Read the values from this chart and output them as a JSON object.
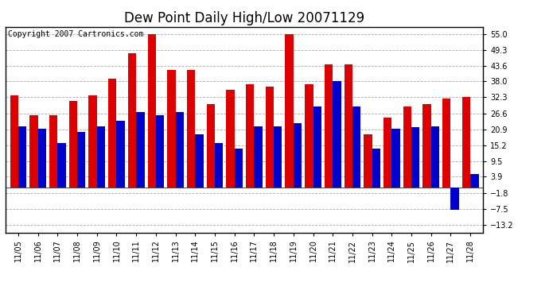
{
  "title": "Dew Point Daily High/Low 20071129",
  "copyright": "Copyright 2007 Cartronics.com",
  "dates": [
    "11/05",
    "11/06",
    "11/07",
    "11/08",
    "11/09",
    "11/10",
    "11/11",
    "11/12",
    "11/13",
    "11/14",
    "11/15",
    "11/16",
    "11/17",
    "11/18",
    "11/19",
    "11/20",
    "11/21",
    "11/22",
    "11/23",
    "11/24",
    "11/25",
    "11/26",
    "11/27",
    "11/28"
  ],
  "highs": [
    33.0,
    26.0,
    26.0,
    31.0,
    33.0,
    39.0,
    48.0,
    55.0,
    42.0,
    42.0,
    30.0,
    35.0,
    37.0,
    36.0,
    55.0,
    37.0,
    44.0,
    44.0,
    19.0,
    25.0,
    29.0,
    30.0,
    32.0,
    32.5
  ],
  "lows": [
    22.0,
    21.0,
    16.0,
    20.0,
    22.0,
    24.0,
    27.0,
    26.0,
    27.0,
    19.0,
    16.0,
    14.0,
    22.0,
    22.0,
    23.0,
    29.0,
    38.0,
    29.0,
    14.0,
    21.0,
    21.5,
    22.0,
    -8.0,
    5.0
  ],
  "yticks": [
    55.0,
    49.3,
    43.6,
    38.0,
    32.3,
    26.6,
    20.9,
    15.2,
    9.5,
    3.9,
    -1.8,
    -7.5,
    -13.2
  ],
  "ylim": [
    -16.0,
    57.5
  ],
  "bar_width": 0.42,
  "high_color": "#dd0000",
  "low_color": "#0000cc",
  "bg_color": "#ffffff",
  "grid_color": "#aaaaaa",
  "title_fontsize": 12,
  "tick_fontsize": 7,
  "copyright_fontsize": 7
}
